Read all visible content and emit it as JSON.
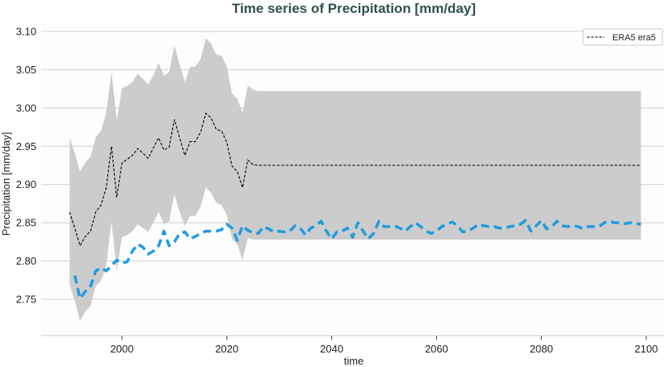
{
  "chart_data": {
    "type": "line",
    "title": "Time series of Precipitation [mm/day]",
    "xlabel": "time",
    "ylabel": "Precipitation [mm/day]",
    "xlim": [
      1980,
      2104
    ],
    "ylim": [
      2.705,
      3.12
    ],
    "x_ticks": [
      2000,
      2020,
      2040,
      2060,
      2080,
      2100
    ],
    "y_ticks": [
      "2.75",
      "2.80",
      "2.85",
      "2.90",
      "2.95",
      "3.00",
      "3.05",
      "3.10"
    ],
    "grid": "horizontal",
    "legend": {
      "placement": "top-right",
      "entries": [
        "ERA5 era5"
      ]
    },
    "colors": {
      "mean_line": "#000000",
      "band": "#cccccc",
      "blue_line": "#1f9be0",
      "title": "#2f4f4f"
    },
    "series": [
      {
        "name": "ERA5 era5",
        "style": "dashed-thin",
        "x_start": 1990,
        "values": [
          2.864,
          2.843,
          2.82,
          2.832,
          2.839,
          2.864,
          2.873,
          2.896,
          2.95,
          2.883,
          2.928,
          2.933,
          2.938,
          2.947,
          2.941,
          2.934,
          2.948,
          2.961,
          2.945,
          2.949,
          2.985,
          2.961,
          2.938,
          2.956,
          2.956,
          2.968,
          2.993,
          2.987,
          2.972,
          2.97,
          2.955,
          2.924,
          2.917,
          2.896,
          2.932,
          2.926
        ],
        "constant_after": {
          "x_end": 2099,
          "value": 2.925
        }
      },
      {
        "style": "dashed-thick",
        "x_start": 1991,
        "values": [
          2.781,
          2.751,
          2.76,
          2.767,
          2.787,
          2.791,
          2.787,
          2.794,
          2.801,
          2.797,
          2.799,
          2.813,
          2.822,
          2.818,
          2.809,
          2.813,
          2.82,
          2.839,
          2.82,
          2.825,
          2.836,
          2.838,
          2.829,
          2.832,
          2.836,
          2.839,
          2.839,
          2.839,
          2.841,
          2.848,
          2.843,
          2.827,
          2.846,
          2.84,
          2.837,
          2.836,
          2.845,
          2.842,
          2.838,
          2.839,
          2.838,
          2.839,
          2.846,
          2.843,
          2.834,
          2.843,
          2.846,
          2.852,
          2.839,
          2.829,
          2.838,
          2.839,
          2.843,
          2.831,
          2.85,
          2.839,
          2.829,
          2.836,
          2.852,
          2.845,
          2.845,
          2.846,
          2.843,
          2.839,
          2.845,
          2.85,
          2.845,
          2.839,
          2.836,
          2.839,
          2.845,
          2.848,
          2.851,
          2.846,
          2.838,
          2.839,
          2.843,
          2.848,
          2.846,
          2.845,
          2.845,
          2.843,
          2.843,
          2.845,
          2.846,
          2.848,
          2.853,
          2.839,
          2.846,
          2.853,
          2.842,
          2.845,
          2.852,
          2.846,
          2.845,
          2.846,
          2.845,
          2.842,
          2.845,
          2.845,
          2.845,
          2.85,
          2.852,
          2.85,
          2.85,
          2.849,
          2.85,
          2.849,
          2.848
        ]
      }
    ],
    "band": {
      "x_start": 1990,
      "upper": [
        2.961,
        2.941,
        2.917,
        2.929,
        2.936,
        2.962,
        2.97,
        2.994,
        3.047,
        2.984,
        3.026,
        3.029,
        3.034,
        3.045,
        3.038,
        3.031,
        3.043,
        3.059,
        3.042,
        3.047,
        3.082,
        3.057,
        3.034,
        3.054,
        3.054,
        3.064,
        3.091,
        3.084,
        3.07,
        3.068,
        3.054,
        3.019,
        3.012,
        2.994,
        3.029,
        3.024
      ],
      "lower": [
        2.769,
        2.748,
        2.722,
        2.734,
        2.741,
        2.767,
        2.774,
        2.794,
        2.852,
        2.787,
        2.831,
        2.834,
        2.839,
        2.848,
        2.843,
        2.838,
        2.85,
        2.864,
        2.848,
        2.852,
        2.887,
        2.864,
        2.846,
        2.859,
        2.859,
        2.871,
        2.896,
        2.889,
        2.876,
        2.873,
        2.86,
        2.829,
        2.822,
        2.801,
        2.83,
        2.828
      ],
      "constant_after": {
        "x_end": 2099,
        "upper": 3.022,
        "lower": 2.828
      }
    }
  }
}
